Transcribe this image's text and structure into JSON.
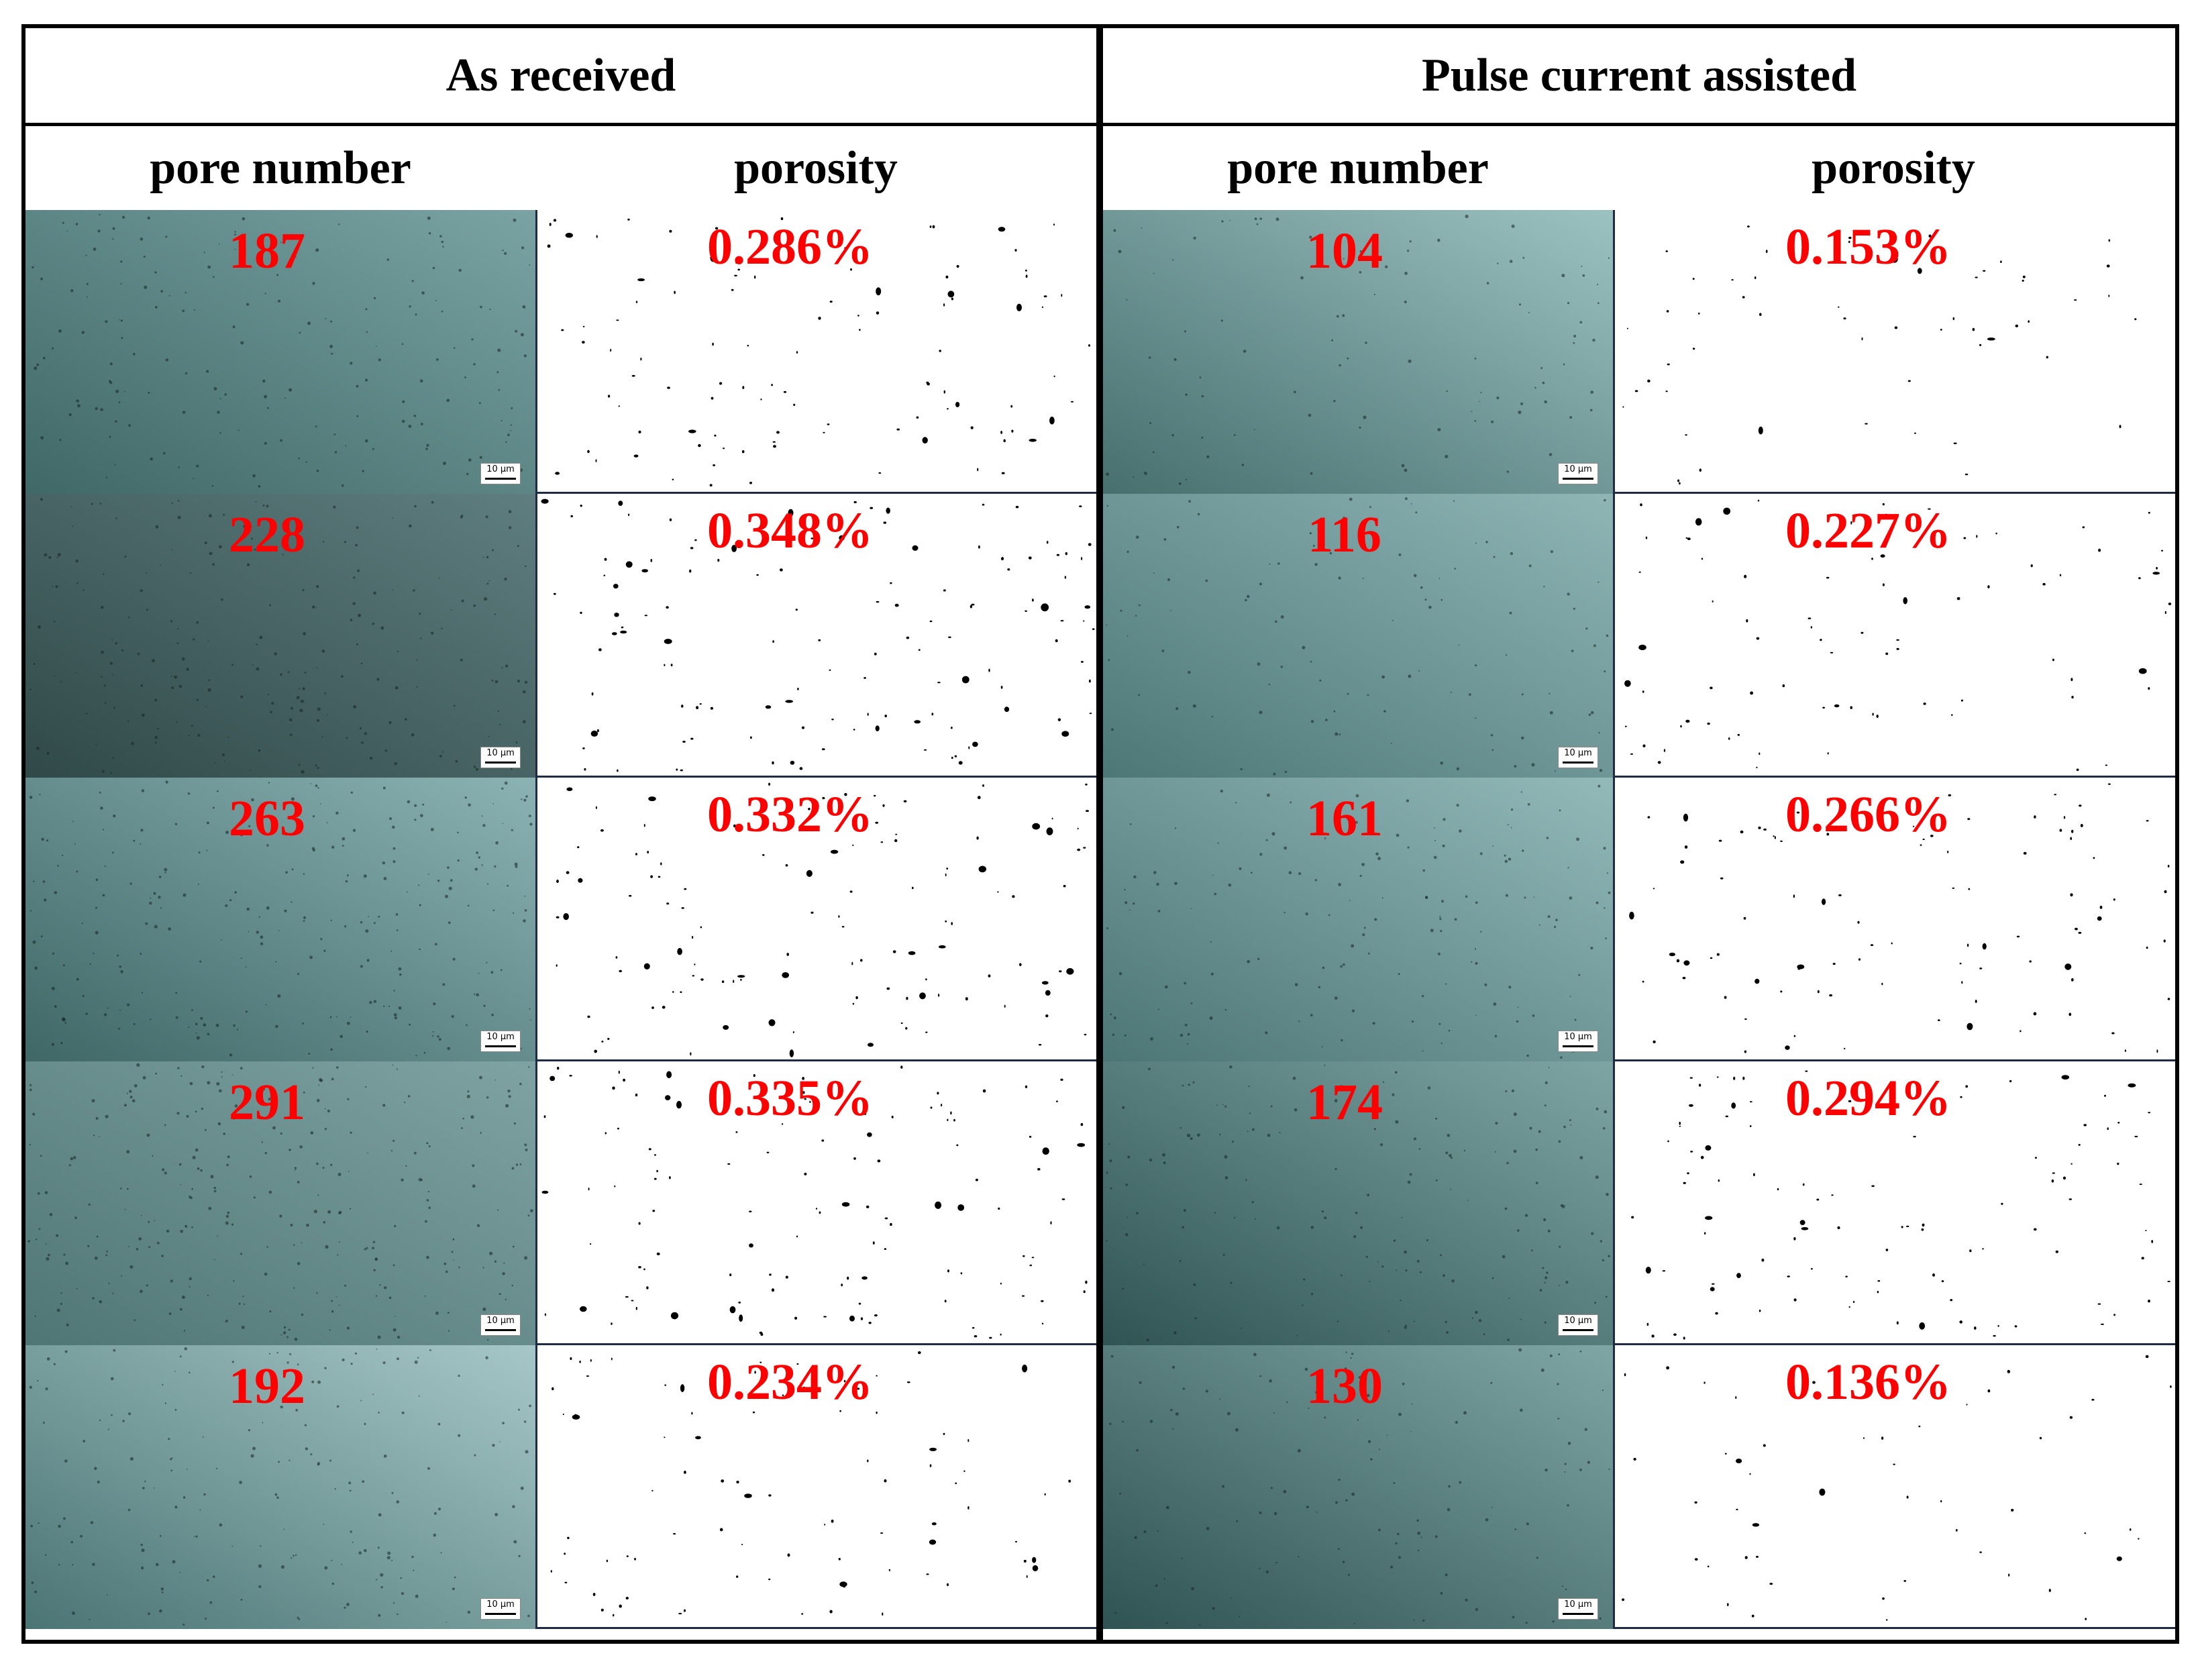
{
  "groups": [
    {
      "title": "As received",
      "col_headers": [
        "pore number",
        "porosity"
      ],
      "rows": [
        {
          "pore_number": "187",
          "porosity": "0.286%",
          "scale_bar": "10 μm",
          "tone": [
            "#3f6866",
            "#7aa3a4"
          ]
        },
        {
          "pore_number": "228",
          "porosity": "0.348%",
          "scale_bar": "10 μm",
          "tone": [
            "#304948",
            "#5f7e80"
          ]
        },
        {
          "pore_number": "263",
          "porosity": "0.332%",
          "scale_bar": "10 μm",
          "tone": [
            "#3e6766",
            "#8cb3b4"
          ]
        },
        {
          "pore_number": "291",
          "porosity": "0.335%",
          "scale_bar": "10 μm",
          "tone": [
            "#4f7574",
            "#7fa3a3"
          ]
        },
        {
          "pore_number": "192",
          "porosity": "0.234%",
          "scale_bar": "10 μm",
          "tone": [
            "#4b7474",
            "#a6c7c7"
          ]
        }
      ]
    },
    {
      "title": "Pulse current assisted",
      "col_headers": [
        "pore number",
        "porosity"
      ],
      "rows": [
        {
          "pore_number": "104",
          "porosity": "0.153%",
          "scale_bar": "10 μm",
          "tone": [
            "#466f6e",
            "#9cc1c1"
          ]
        },
        {
          "pore_number": "116",
          "porosity": "0.227%",
          "scale_bar": "10 μm",
          "tone": [
            "#4d7777",
            "#8fb5b5"
          ]
        },
        {
          "pore_number": "161",
          "porosity": "0.266%",
          "scale_bar": "10 μm",
          "tone": [
            "#4c7575",
            "#93b9b9"
          ]
        },
        {
          "pore_number": "174",
          "porosity": "0.294%",
          "scale_bar": "10 μm",
          "tone": [
            "#2f5453",
            "#7ea4a4"
          ]
        },
        {
          "pore_number": "130",
          "porosity": "0.136%",
          "scale_bar": "10 μm",
          "tone": [
            "#2f5352",
            "#7fa5a5"
          ]
        }
      ]
    }
  ]
}
